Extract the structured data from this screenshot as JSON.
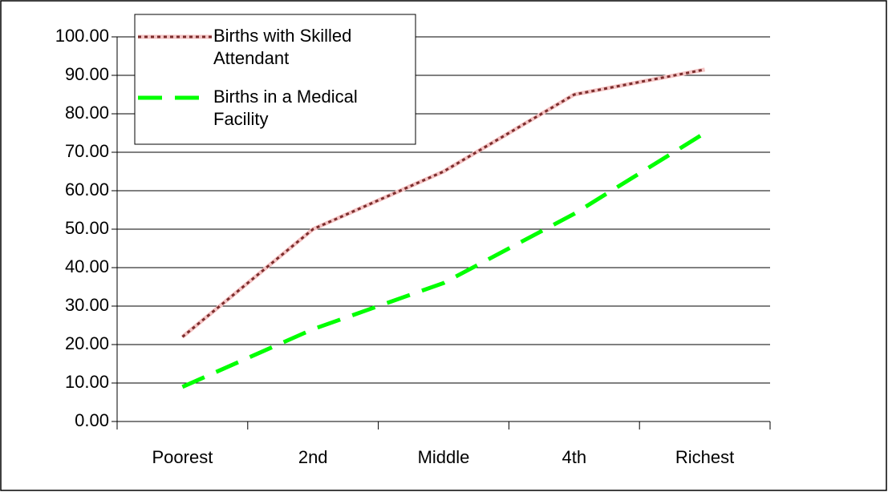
{
  "chart_data": {
    "type": "line",
    "categories": [
      "Poorest",
      "2nd",
      "Middle",
      "4th",
      "Richest"
    ],
    "series": [
      {
        "name": "Births with Skilled Attendant",
        "color": "#7b2c2c",
        "values": [
          22,
          50,
          65,
          85,
          91.5
        ]
      },
      {
        "name": "Births in a Medical Facility",
        "color": "#00ff00",
        "values": [
          9,
          24,
          36,
          54,
          75
        ]
      }
    ],
    "ylim": [
      0,
      100
    ],
    "yticks": [
      {
        "value": 0,
        "label": "0.00"
      },
      {
        "value": 10,
        "label": "10.00"
      },
      {
        "value": 20,
        "label": "20.00"
      },
      {
        "value": 30,
        "label": "30.00"
      },
      {
        "value": 40,
        "label": "40.00"
      },
      {
        "value": 50,
        "label": "50.00"
      },
      {
        "value": 60,
        "label": "60.00"
      },
      {
        "value": 70,
        "label": "70.00"
      },
      {
        "value": 80,
        "label": "80.00"
      },
      {
        "value": 90,
        "label": "90.00"
      },
      {
        "value": 100,
        "label": "100.00"
      }
    ],
    "grid": true,
    "legend": "top-left"
  }
}
